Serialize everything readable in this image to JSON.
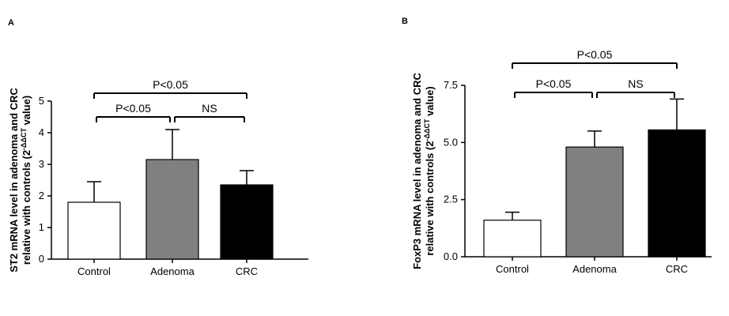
{
  "chart_data": [
    {
      "type": "bar",
      "panel": "A",
      "y_label_line1": "ST2 mRNA level in adenoma and CRC",
      "y_label_line2": "relative with controls (2",
      "y_label_superscript": "-ΔΔCT",
      "y_label_end": " value)",
      "categories": [
        "Control",
        "Adenoma",
        "CRC"
      ],
      "values": [
        1.8,
        3.15,
        2.35
      ],
      "errors": [
        0.65,
        0.95,
        0.45
      ],
      "colors": [
        "#ffffff",
        "#808080",
        "#000000"
      ],
      "ylim": [
        0,
        5
      ],
      "yticks": [
        0,
        1,
        2,
        3,
        4,
        5
      ],
      "annotations": [
        {
          "from": 0,
          "to": 1,
          "label": "P<0.05"
        },
        {
          "from": 1,
          "to": 2,
          "label": "NS"
        },
        {
          "from": 0,
          "to": 2,
          "label": "P<0.05"
        }
      ]
    },
    {
      "type": "bar",
      "panel": "B",
      "y_label_line1": "FoxP3 mRNA level in adenoma and CRC",
      "y_label_line2": "relative with controls (2",
      "y_label_superscript": "-ΔΔCT",
      "y_label_end": " value)",
      "categories": [
        "Control",
        "Adenoma",
        "CRC"
      ],
      "values": [
        1.6,
        4.8,
        5.55
      ],
      "errors": [
        0.35,
        0.7,
        1.35
      ],
      "colors": [
        "#ffffff",
        "#808080",
        "#000000"
      ],
      "ylim": [
        0,
        7.5
      ],
      "yticks": [
        {
          "value": 0,
          "label": "0.0"
        },
        2.5,
        {
          "value": 5,
          "label": "5.0"
        },
        7.5
      ],
      "annotations": [
        {
          "from": 0,
          "to": 1,
          "label": "P<0.05"
        },
        {
          "from": 1,
          "to": 2,
          "label": "NS"
        },
        {
          "from": 0,
          "to": 2,
          "label": "P<0.05"
        }
      ]
    }
  ]
}
